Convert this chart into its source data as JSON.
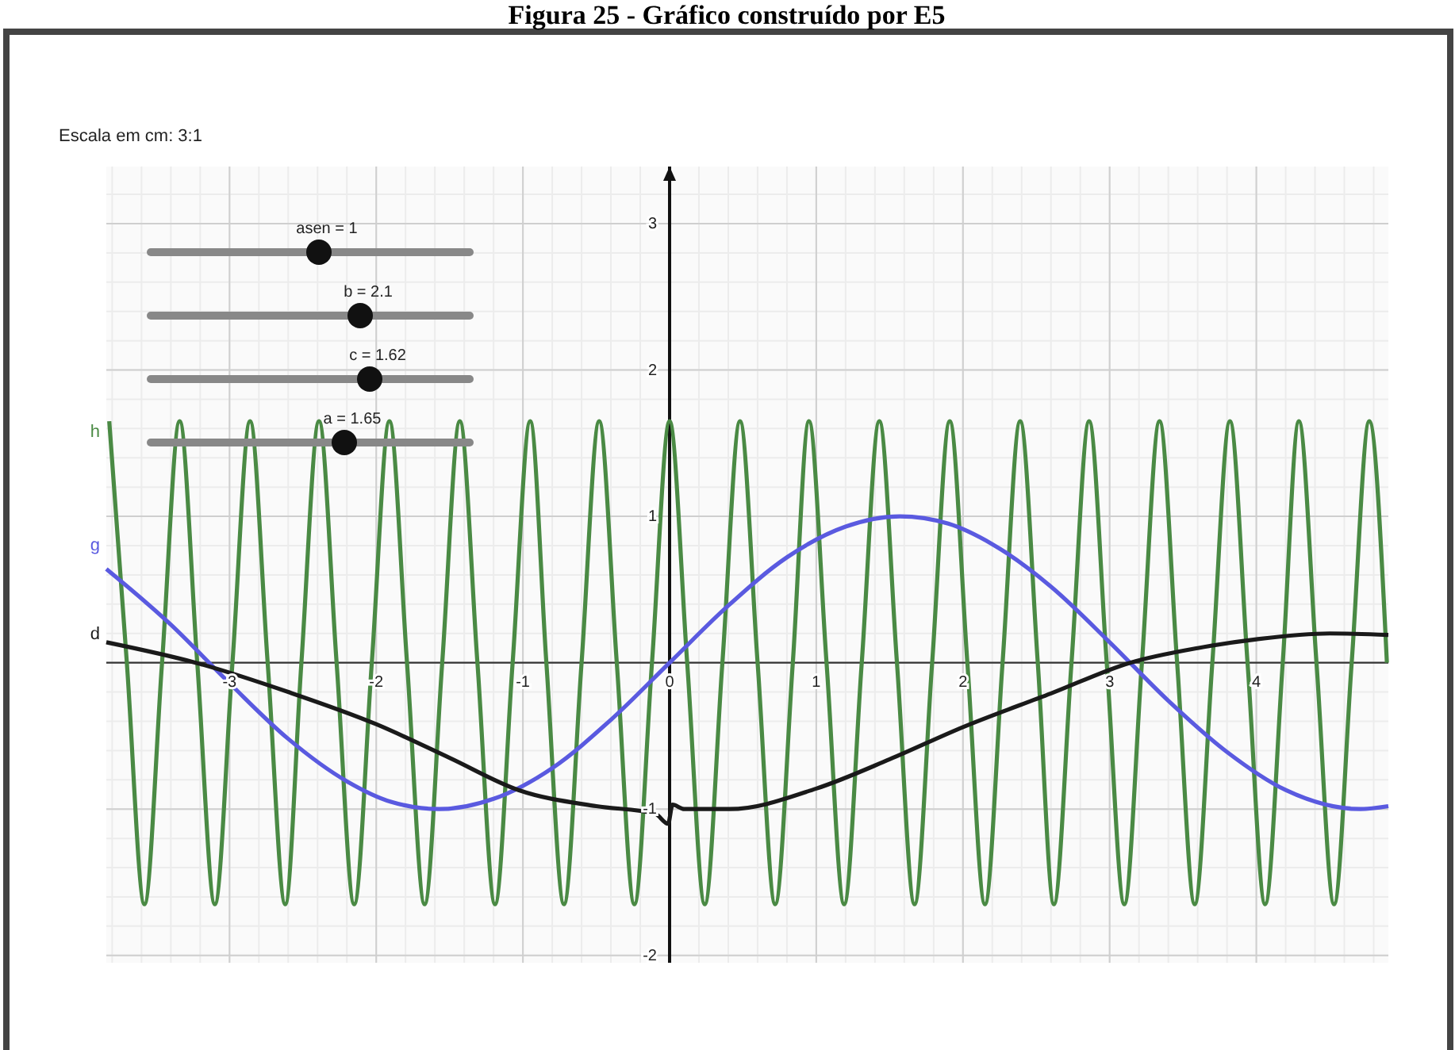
{
  "chart_data": {
    "type": "line",
    "title": "Figura 25 - Gráfico construído por E5",
    "annotations": [
      "Escala em cm: 3:1",
      "asen = 1",
      "b = 2.1",
      "c = 1.62",
      "a = 1.65"
    ],
    "xlim": [
      -3.84,
      4.9
    ],
    "ylim": [
      -2.05,
      3.39
    ],
    "xticks": [
      -3,
      -2,
      -1,
      0,
      1,
      2,
      3,
      4
    ],
    "yticks": [
      -2,
      -1,
      1,
      2,
      3
    ],
    "grid": true,
    "marker": "none",
    "line_style": "solid",
    "series": [
      {
        "name": "h",
        "color": "#4a8a44",
        "x": [
          -3.82,
          -3.7,
          -3.58,
          -3.46,
          -3.34,
          -3.22,
          -3.1,
          -2.98,
          -2.86,
          -2.74,
          -2.62,
          -2.51,
          -2.39,
          -2.27,
          -2.15,
          -2.03,
          -1.91,
          -1.79,
          -1.67,
          -1.55,
          -1.43,
          -1.31,
          -1.19,
          -1.07,
          -0.95,
          -0.84,
          -0.72,
          -0.6,
          -0.48,
          -0.36,
          -0.24,
          -0.12,
          0,
          0.12,
          0.24,
          0.36,
          0.48,
          0.6,
          0.72,
          0.84,
          0.95,
          1.07,
          1.19,
          1.31,
          1.43,
          1.55,
          1.67,
          1.79,
          1.91,
          2.03,
          2.15,
          2.27,
          2.39,
          2.51,
          2.62,
          2.74,
          2.86,
          2.98,
          3.1,
          3.22,
          3.34,
          3.46,
          3.58,
          3.7,
          3.82,
          3.94,
          4.06,
          4.18,
          4.29,
          4.41,
          4.53,
          4.65,
          4.77,
          4.89
        ],
        "values": [
          1.65,
          0,
          -1.65,
          0,
          1.65,
          0,
          -1.65,
          0,
          1.65,
          0,
          -1.65,
          0,
          1.65,
          0,
          -1.65,
          0,
          1.65,
          0,
          -1.65,
          0,
          1.65,
          0,
          -1.65,
          0,
          1.65,
          0,
          -1.65,
          0,
          1.65,
          0,
          -1.65,
          0,
          1.65,
          0,
          -1.65,
          0,
          1.65,
          0,
          -1.65,
          0,
          1.65,
          0,
          -1.65,
          0,
          1.65,
          0,
          -1.65,
          0,
          1.65,
          0,
          -1.65,
          0,
          1.65,
          0,
          -1.65,
          0,
          1.65,
          0,
          -1.65,
          0,
          1.65,
          0,
          -1.65,
          0,
          1.65,
          0,
          -1.65,
          0,
          1.65,
          0,
          -1.65,
          0,
          1.65,
          0
        ]
      },
      {
        "name": "g",
        "color": "#5a5ae0",
        "x": [
          -3.84,
          -3.4,
          -3.0,
          -2.6,
          -2.2,
          -1.9,
          -1.57,
          -1.2,
          -0.8,
          -0.4,
          0,
          0.4,
          0.8,
          1.2,
          1.57,
          1.9,
          2.2,
          2.6,
          3.0,
          3.4,
          3.8,
          4.2,
          4.71,
          4.9
        ],
        "values": [
          0.64,
          0.26,
          -0.14,
          -0.52,
          -0.81,
          -0.95,
          -1,
          -0.93,
          -0.72,
          -0.39,
          0,
          0.39,
          0.72,
          0.93,
          1,
          0.95,
          0.81,
          0.52,
          0.14,
          -0.26,
          -0.61,
          -0.87,
          -1,
          -0.98
        ]
      },
      {
        "name": "d",
        "color": "#1a1a1a",
        "x": [
          -3.84,
          -3.23,
          -2.6,
          -2.0,
          -1.5,
          -1.03,
          -0.5,
          -0.1,
          -0.01,
          0.02,
          0.1,
          0.41,
          1.0,
          1.5,
          2.0,
          2.6,
          3.14,
          3.6,
          4.0,
          4.5,
          4.9
        ],
        "values": [
          0.14,
          0,
          -0.2,
          -0.42,
          -0.65,
          -0.87,
          -0.98,
          -1.03,
          -1.1,
          -0.97,
          -1.0,
          -1.0,
          -0.86,
          -0.66,
          -0.44,
          -0.21,
          0,
          0.1,
          0.16,
          0.2,
          0.19
        ]
      }
    ]
  }
}
